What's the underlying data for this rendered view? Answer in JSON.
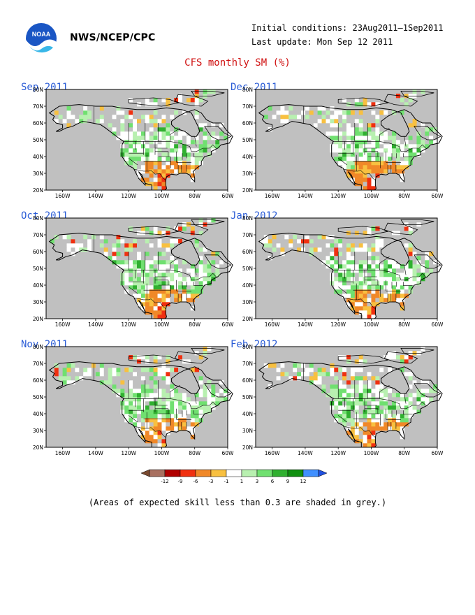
{
  "header": {
    "org": "NWS/NCEP/CPC",
    "logo_text": "NOAA",
    "initial_conditions": "Initial conditions: 23Aug2011—1Sep2011",
    "last_update": "Last update: Mon Sep 12 2011"
  },
  "title": "CFS monthly SM (%)",
  "map": {
    "lat_labels": [
      "80N",
      "70N",
      "60N",
      "50N",
      "40N",
      "30N",
      "20N"
    ],
    "lon_labels": [
      "160W",
      "140W",
      "120W",
      "100W",
      "80W",
      "60W"
    ],
    "lon_range": [
      -170,
      -60
    ],
    "lat_range": [
      20,
      80
    ],
    "masked_color": "#c0c0c0",
    "land_color": "#ffffff"
  },
  "panels": [
    {
      "title": "Sep 2011",
      "seed": 11,
      "dry_boost": 0.9
    },
    {
      "title": "Dec 2011",
      "seed": 23,
      "dry_boost": 1.0
    },
    {
      "title": "Oct 2011",
      "seed": 37,
      "dry_boost": 0.85
    },
    {
      "title": "Jan 2012",
      "seed": 41,
      "dry_boost": 0.8
    },
    {
      "title": "Nov 2011",
      "seed": 53,
      "dry_boost": 0.8
    },
    {
      "title": "Feb 2012",
      "seed": 67,
      "dry_boost": 0.75
    }
  ],
  "colorbar": {
    "labels": [
      "-12",
      "-9",
      "-6",
      "-3",
      "-1",
      "1",
      "3",
      "6",
      "9",
      "12"
    ],
    "colors": [
      "#7a4a30",
      "#a87060",
      "#b00000",
      "#f03010",
      "#f08828",
      "#f8c040",
      "#ffffff",
      "#b8f0b0",
      "#70e070",
      "#30b030",
      "#109010",
      "#4090ff",
      "#2050e0"
    ]
  },
  "footnote": "(Areas of expected skill less than 0.3 are shaded in grey.)"
}
